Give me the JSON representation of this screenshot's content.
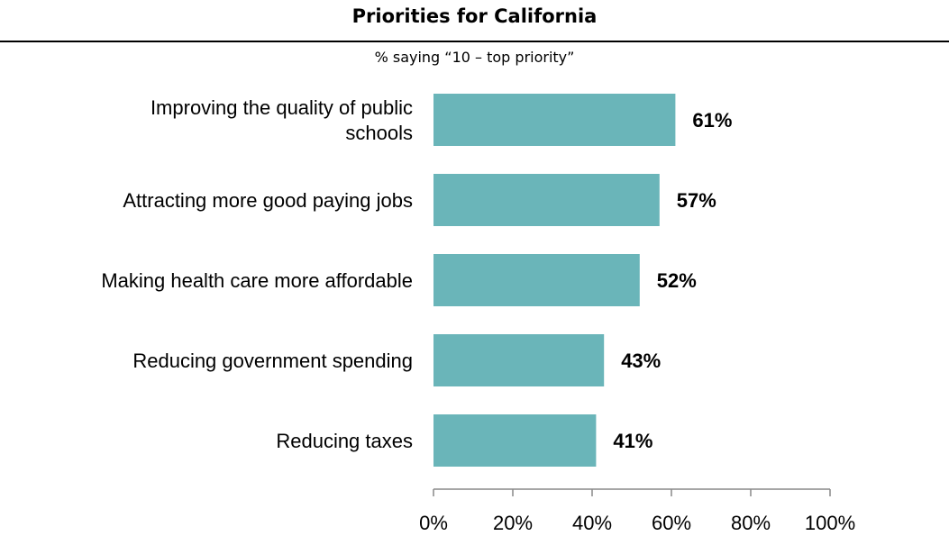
{
  "chart_data": {
    "type": "bar",
    "orientation": "horizontal",
    "title": "Priorities for California",
    "subtitle": "% saying “10 – top priority”",
    "categories": [
      [
        "Improving the quality of public",
        "schools"
      ],
      [
        "Attracting more good paying jobs"
      ],
      [
        "Making health care more affordable"
      ],
      [
        "Reducing government spending"
      ],
      [
        "Reducing taxes"
      ]
    ],
    "values": [
      61,
      57,
      52,
      43,
      41
    ],
    "value_labels": [
      "61%",
      "57%",
      "52%",
      "43%",
      "41%"
    ],
    "x_ticks": [
      0,
      20,
      40,
      60,
      80,
      100
    ],
    "x_tick_labels": [
      "0%",
      "20%",
      "40%",
      "60%",
      "80%",
      "100%"
    ],
    "xlim": [
      0,
      100
    ],
    "bar_color": "#6ab5b9",
    "grid": false,
    "legend": "none"
  }
}
